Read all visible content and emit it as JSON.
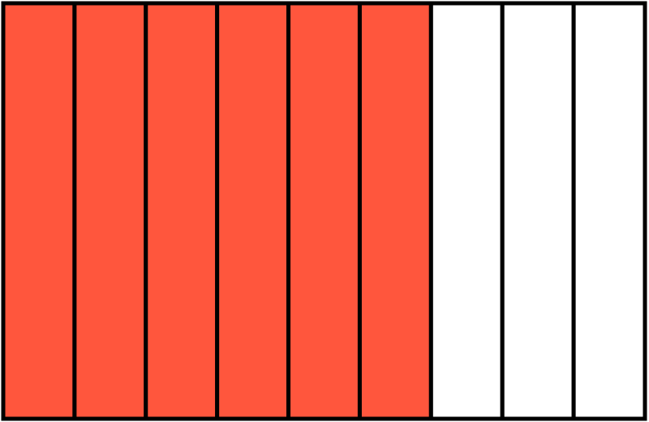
{
  "fraction_model": {
    "total_parts": 9,
    "shaded_parts": 6,
    "orientation": "vertical-strips",
    "colors": {
      "shaded": "#FF563D",
      "unshaded": "#FFFFFF",
      "outline": "#000000"
    }
  }
}
